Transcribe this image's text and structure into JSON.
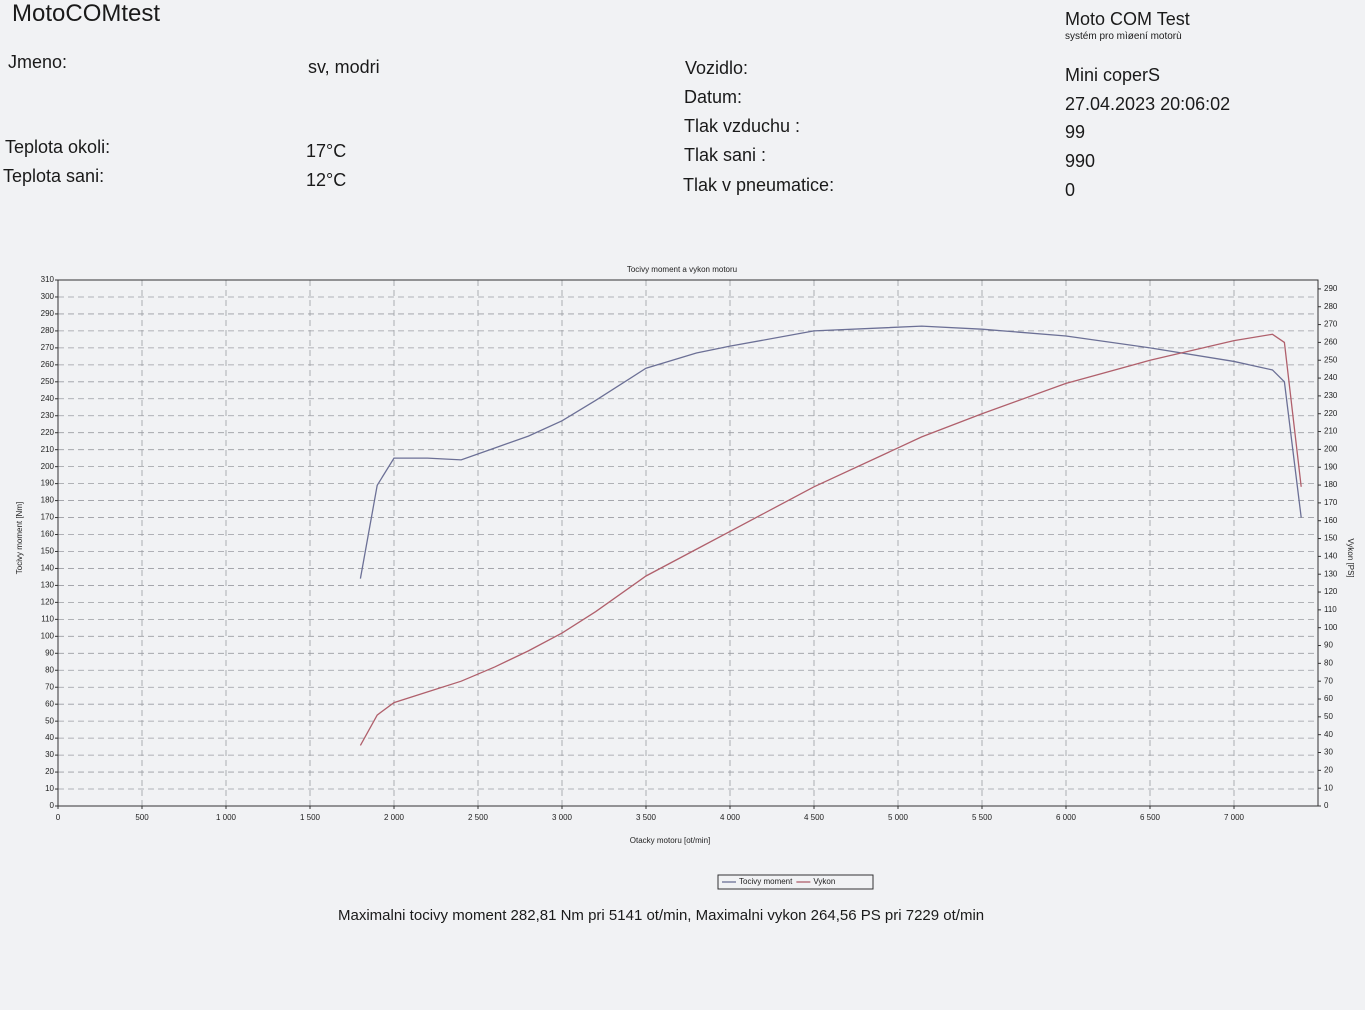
{
  "header": {
    "title": "MotoCOMtest",
    "brand": "Moto COM Test",
    "brand_subtitle": "systém pro mìøení motorù",
    "fields_left": [
      {
        "label": "Jmeno:",
        "value": "sv, modri"
      },
      {
        "label": "Teplota okoli:",
        "value": "17°C"
      },
      {
        "label": "Teplota sani:",
        "value": "12°C"
      }
    ],
    "fields_right": [
      {
        "label": "Vozidlo:",
        "value": "Mini coperS"
      },
      {
        "label": "Datum:",
        "value": "27.04.2023 20:06:02"
      },
      {
        "label": "Tlak vzduchu :",
        "value": "99"
      },
      {
        "label": "Tlak sani :",
        "value": "990"
      },
      {
        "label": "Tlak v pneumatice:",
        "value": "0"
      }
    ]
  },
  "chart_data": {
    "type": "line",
    "title": "Tocivy moment a vykon motoru",
    "x_label": "Otacky motoru [ot/min]",
    "y_label": "Tocivy moment [Nm]",
    "y2_label": "Vykon [PS]",
    "x": [
      1800,
      1900,
      2000,
      2200,
      2400,
      2600,
      2800,
      3000,
      3200,
      3500,
      3800,
      4000,
      4500,
      5141,
      5500,
      6000,
      6500,
      7000,
      7229,
      7300,
      7400
    ],
    "series": [
      {
        "name": "Tocivy moment",
        "color": "#6c7096",
        "values": [
          134,
          189,
          205,
          205,
          204,
          211,
          218,
          227,
          239,
          258,
          267,
          271,
          280,
          282.81,
          281,
          277,
          270,
          262,
          257,
          250,
          170
        ]
      },
      {
        "name": "Vykon",
        "color": "#b0606c",
        "axis": "y2",
        "values": [
          34,
          51,
          58,
          64,
          70,
          78,
          87,
          97,
          109,
          129,
          144,
          154,
          179,
          207,
          220,
          237,
          250,
          261,
          264.56,
          260,
          179
        ]
      }
    ],
    "xlim": [
      0,
      7500
    ],
    "xticks": [
      0,
      500,
      {
        "value": 1000,
        "label": "1 000"
      },
      {
        "value": 1500,
        "label": "1 500"
      },
      {
        "value": 2000,
        "label": "2 000"
      },
      {
        "value": 2500,
        "label": "2 500"
      },
      {
        "value": 3000,
        "label": "3 000"
      },
      {
        "value": 3500,
        "label": "3 500"
      },
      {
        "value": 4000,
        "label": "4 000"
      },
      {
        "value": 4500,
        "label": "4 500"
      },
      {
        "value": 5000,
        "label": "5 000"
      },
      {
        "value": 5500,
        "label": "5 500"
      },
      {
        "value": 6000,
        "label": "6 000"
      },
      {
        "value": 6500,
        "label": "6 500"
      },
      {
        "value": 7000,
        "label": "7 000"
      }
    ],
    "ylim": [
      0,
      310
    ],
    "yticks": [
      0,
      10,
      20,
      30,
      40,
      50,
      60,
      70,
      80,
      90,
      100,
      110,
      120,
      130,
      140,
      150,
      160,
      170,
      180,
      190,
      200,
      210,
      220,
      230,
      240,
      250,
      260,
      270,
      280,
      290,
      300,
      310
    ],
    "y2lim": [
      0,
      295
    ],
    "y2ticks": [
      0,
      10,
      20,
      30,
      40,
      50,
      60,
      70,
      80,
      90,
      100,
      110,
      120,
      130,
      140,
      150,
      160,
      170,
      180,
      190,
      200,
      210,
      220,
      230,
      240,
      250,
      260,
      270,
      280,
      290
    ],
    "grid": true
  },
  "footer": {
    "summary": "Maximalni tocivy moment 282,81 Nm pri 5141 ot/min,  Maximalni vykon 264,56 PS pri 7229 ot/min"
  }
}
